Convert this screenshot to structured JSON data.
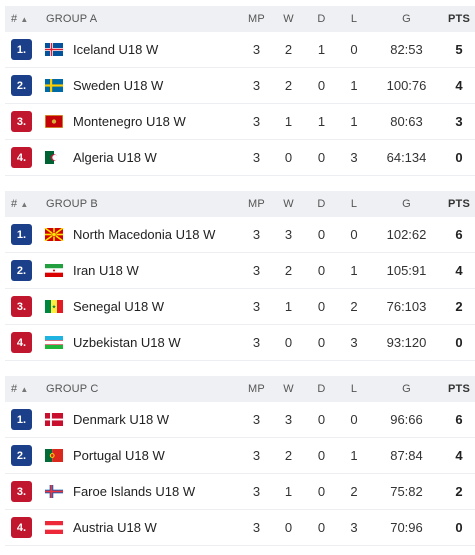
{
  "headers": {
    "rank": "#",
    "mp": "MP",
    "w": "W",
    "d": "D",
    "l": "L",
    "g": "G",
    "pts": "PTS"
  },
  "colors": {
    "rank1": "#1c3f8a",
    "rank2": "#1c3f8a",
    "rank3": "#c0172e",
    "rank4": "#c0172e"
  },
  "groups": [
    {
      "name": "GROUP A",
      "rows": [
        {
          "rank": "1.",
          "team": "Iceland U18 W",
          "flag": "iceland-flag-icon",
          "mp": "3",
          "w": "2",
          "d": "1",
          "l": "0",
          "g": "82:53",
          "pts": "5"
        },
        {
          "rank": "2.",
          "team": "Sweden U18 W",
          "flag": "sweden-flag-icon",
          "mp": "3",
          "w": "2",
          "d": "0",
          "l": "1",
          "g": "100:76",
          "pts": "4"
        },
        {
          "rank": "3.",
          "team": "Montenegro U18 W",
          "flag": "montenegro-flag-icon",
          "mp": "3",
          "w": "1",
          "d": "1",
          "l": "1",
          "g": "80:63",
          "pts": "3"
        },
        {
          "rank": "4.",
          "team": "Algeria U18 W",
          "flag": "algeria-flag-icon",
          "mp": "3",
          "w": "0",
          "d": "0",
          "l": "3",
          "g": "64:134",
          "pts": "0"
        }
      ]
    },
    {
      "name": "GROUP B",
      "rows": [
        {
          "rank": "1.",
          "team": "North Macedonia U18 W",
          "flag": "north-macedonia-flag-icon",
          "mp": "3",
          "w": "3",
          "d": "0",
          "l": "0",
          "g": "102:62",
          "pts": "6"
        },
        {
          "rank": "2.",
          "team": "Iran U18 W",
          "flag": "iran-flag-icon",
          "mp": "3",
          "w": "2",
          "d": "0",
          "l": "1",
          "g": "105:91",
          "pts": "4"
        },
        {
          "rank": "3.",
          "team": "Senegal U18 W",
          "flag": "senegal-flag-icon",
          "mp": "3",
          "w": "1",
          "d": "0",
          "l": "2",
          "g": "76:103",
          "pts": "2"
        },
        {
          "rank": "4.",
          "team": "Uzbekistan U18 W",
          "flag": "uzbekistan-flag-icon",
          "mp": "3",
          "w": "0",
          "d": "0",
          "l": "3",
          "g": "93:120",
          "pts": "0"
        }
      ]
    },
    {
      "name": "GROUP C",
      "rows": [
        {
          "rank": "1.",
          "team": "Denmark U18 W",
          "flag": "denmark-flag-icon",
          "mp": "3",
          "w": "3",
          "d": "0",
          "l": "0",
          "g": "96:66",
          "pts": "6"
        },
        {
          "rank": "2.",
          "team": "Portugal U18 W",
          "flag": "portugal-flag-icon",
          "mp": "3",
          "w": "2",
          "d": "0",
          "l": "1",
          "g": "87:84",
          "pts": "4"
        },
        {
          "rank": "3.",
          "team": "Faroe Islands U18 W",
          "flag": "faroe-islands-flag-icon",
          "mp": "3",
          "w": "1",
          "d": "0",
          "l": "2",
          "g": "75:82",
          "pts": "2"
        },
        {
          "rank": "4.",
          "team": "Austria U18 W",
          "flag": "austria-flag-icon",
          "mp": "3",
          "w": "0",
          "d": "0",
          "l": "3",
          "g": "70:96",
          "pts": "0"
        }
      ]
    }
  ]
}
